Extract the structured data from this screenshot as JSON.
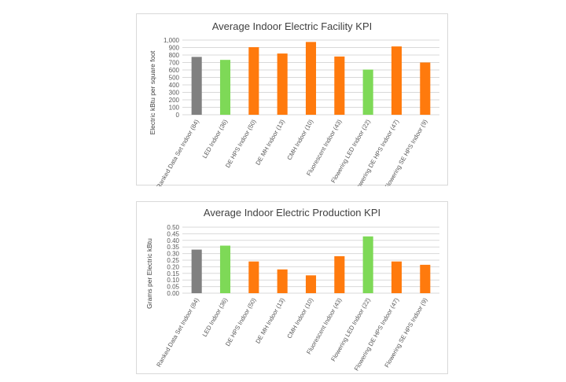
{
  "colors": {
    "gray": "#808080",
    "green": "#7ed957",
    "orange": "#ff7a0d",
    "grid": "#d9d9d9",
    "text": "#595959"
  },
  "chart_data": [
    {
      "type": "bar",
      "title": "Average Indoor Electric Facility KPI",
      "xlabel": "",
      "ylabel": "Electric kBtu per square foot",
      "ylim": [
        0,
        1000
      ],
      "ytick_step": 100,
      "ytick_labels": [
        "0",
        "100",
        "200",
        "300",
        "400",
        "500",
        "600",
        "700",
        "800",
        "900",
        "1,000"
      ],
      "grid": true,
      "categories": [
        "Ranked Data Set Indoor (84)",
        "LED Indoor (36)",
        "DE HPS Indoor (50)",
        "DE MH Indoor (13)",
        "CMH Indoor (10)",
        "Fluorescent Indoor (43)",
        "Flowering LED Indoor (22)",
        "Flowering DE HPS Indoor (47)",
        "Flowering SE HPS Indoor (9)"
      ],
      "values": [
        775,
        735,
        905,
        820,
        975,
        780,
        605,
        915,
        700
      ],
      "bar_colors": [
        "gray",
        "green",
        "orange",
        "orange",
        "orange",
        "orange",
        "green",
        "orange",
        "orange"
      ]
    },
    {
      "type": "bar",
      "title": "Average Indoor Electric Production KPI",
      "xlabel": "",
      "ylabel": "Grams per Electric kBtu",
      "ylim": [
        0,
        0.5
      ],
      "ytick_step": 0.05,
      "ytick_labels": [
        "0.00",
        "0.05",
        "0.10",
        "0.15",
        "0.20",
        "0.25",
        "0.30",
        "0.35",
        "0.40",
        "0.45",
        "0.50"
      ],
      "grid": true,
      "categories": [
        "Ranked Data Set Indoor (84)",
        "LED Indoor (36)",
        "DE HPS Indoor (50)",
        "DE MH Indoor (13)",
        "CMH Indoor (10)",
        "Fluorescent Indoor (43)",
        "Flowering LED Indoor (22)",
        "Flowering DE HPS Indoor (47)",
        "Flowering SE HPS Indoor (9)"
      ],
      "values": [
        0.33,
        0.36,
        0.24,
        0.18,
        0.135,
        0.28,
        0.43,
        0.24,
        0.215
      ],
      "bar_colors": [
        "gray",
        "green",
        "orange",
        "orange",
        "orange",
        "orange",
        "green",
        "orange",
        "orange"
      ]
    }
  ]
}
